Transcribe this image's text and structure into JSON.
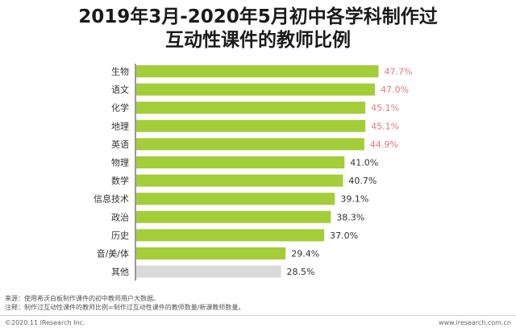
{
  "title_line1": "2019年3月-2020年5月初中各学科制作过",
  "title_line2": "互动性课件的教师比例",
  "footnote_source": "来源：使用希沃白板制作课件的初中教师用户大数据。",
  "footnote_note": "注释：制作过互动性课件的教师比例=制作过互动性课件的教师数量/新课教师数量。",
  "copyright": "©2020.11  iResearch Inc.",
  "website": "www.iresearch.com.cn",
  "colors": {
    "bar": "#a3cd39",
    "bar_other": "#d9d9d9",
    "label_highlight": "#e8767c",
    "label_normal": "#333333",
    "axis": "#333333"
  },
  "chart_data": {
    "type": "bar",
    "orientation": "horizontal",
    "unit": "%",
    "categories": [
      "生物",
      "语文",
      "化学",
      "地理",
      "英语",
      "物理",
      "数学",
      "信息技术",
      "政治",
      "历史",
      "音/美/体",
      "其他"
    ],
    "values": [
      47.7,
      47.0,
      45.1,
      45.1,
      44.9,
      41.0,
      40.7,
      39.1,
      38.3,
      37.0,
      29.4,
      28.5
    ],
    "value_labels": [
      "47.7%",
      "47.0%",
      "45.1%",
      "45.1%",
      "44.9%",
      "41.0%",
      "40.7%",
      "39.1%",
      "38.3%",
      "37.0%",
      "29.4%",
      "28.5%"
    ],
    "highlighted": [
      true,
      true,
      true,
      true,
      true,
      false,
      false,
      false,
      false,
      false,
      false,
      false
    ],
    "other_category": "其他",
    "xlim": [
      0,
      50
    ],
    "grid": false,
    "legend": "none"
  }
}
